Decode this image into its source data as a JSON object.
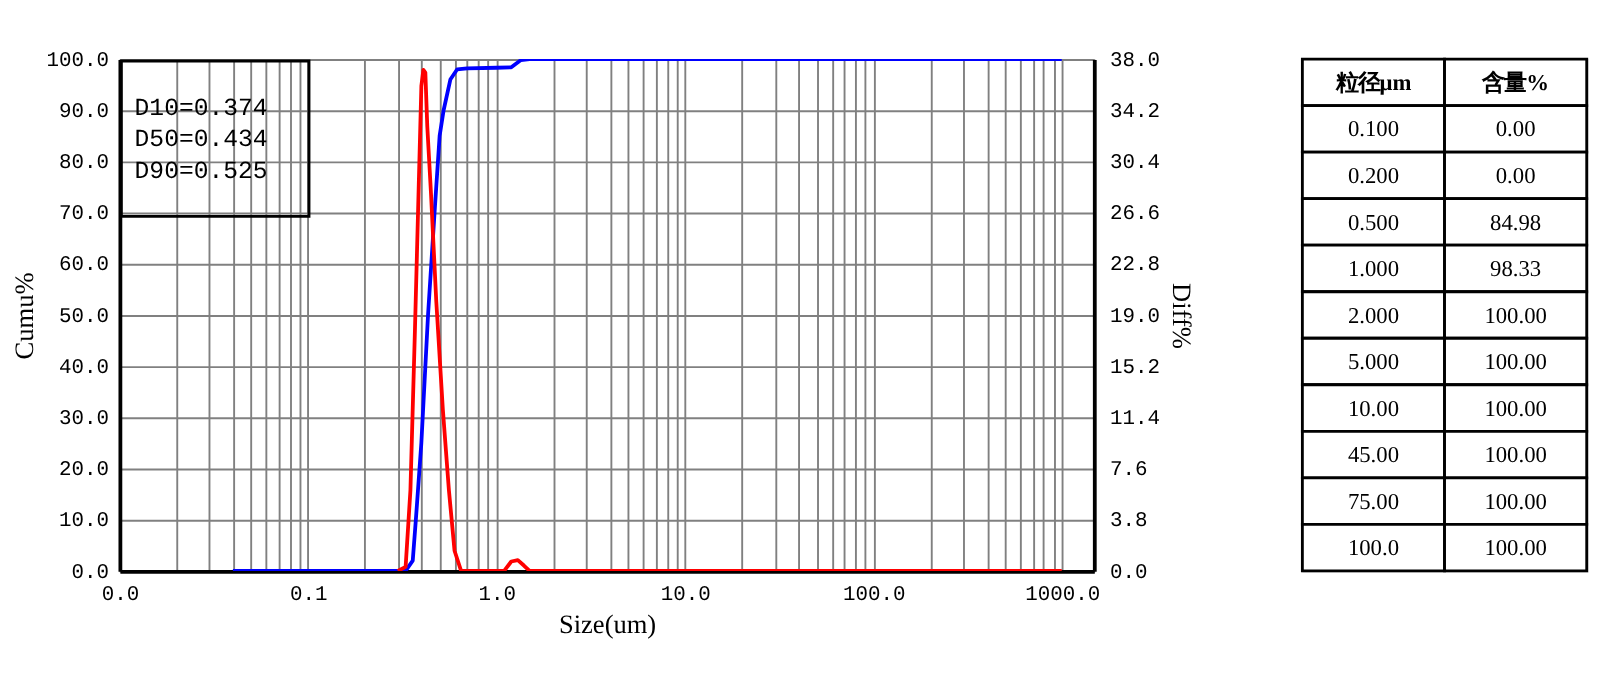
{
  "chart_data": [
    {
      "type": "line",
      "xlabel": "Size(um)",
      "ylabel": "Cumu%",
      "y2label": "Diff%",
      "log": "x",
      "grid": true,
      "marker": "none",
      "line_style": "solid",
      "xlim": [
        0.01,
        1480
      ],
      "xticks": [
        {
          "value": 0.01,
          "label": "0.0"
        },
        {
          "value": 0.02,
          "label": null
        },
        {
          "value": 0.03,
          "label": null
        },
        {
          "value": 0.04,
          "label": null
        },
        {
          "value": 0.05,
          "label": null
        },
        {
          "value": 0.06,
          "label": null
        },
        {
          "value": 0.07,
          "label": null
        },
        {
          "value": 0.08,
          "label": null
        },
        {
          "value": 0.09,
          "label": null
        },
        {
          "value": 0.1,
          "label": "0.1"
        },
        {
          "value": 0.2,
          "label": null
        },
        {
          "value": 0.3,
          "label": null
        },
        {
          "value": 0.4,
          "label": null
        },
        {
          "value": 0.5,
          "label": null
        },
        {
          "value": 0.6,
          "label": null
        },
        {
          "value": 0.7,
          "label": null
        },
        {
          "value": 0.8,
          "label": null
        },
        {
          "value": 0.9,
          "label": null
        },
        {
          "value": 1,
          "label": "1.0"
        },
        {
          "value": 2,
          "label": null
        },
        {
          "value": 3,
          "label": null
        },
        {
          "value": 4,
          "label": null
        },
        {
          "value": 5,
          "label": null
        },
        {
          "value": 6,
          "label": null
        },
        {
          "value": 7,
          "label": null
        },
        {
          "value": 8,
          "label": null
        },
        {
          "value": 9,
          "label": null
        },
        {
          "value": 10,
          "label": "10.0"
        },
        {
          "value": 20,
          "label": null
        },
        {
          "value": 30,
          "label": null
        },
        {
          "value": 40,
          "label": null
        },
        {
          "value": 50,
          "label": null
        },
        {
          "value": 60,
          "label": null
        },
        {
          "value": 70,
          "label": null
        },
        {
          "value": 80,
          "label": null
        },
        {
          "value": 90,
          "label": null
        },
        {
          "value": 100,
          "label": "100.0"
        },
        {
          "value": 200,
          "label": null
        },
        {
          "value": 300,
          "label": null
        },
        {
          "value": 400,
          "label": null
        },
        {
          "value": 500,
          "label": null
        },
        {
          "value": 600,
          "label": null
        },
        {
          "value": 700,
          "label": null
        },
        {
          "value": 800,
          "label": null
        },
        {
          "value": 900,
          "label": null
        },
        {
          "value": 1000,
          "label": "1000.0"
        }
      ],
      "ylim": [
        0,
        100
      ],
      "yticks": [
        {
          "value": 0,
          "label": "0.0"
        },
        {
          "value": 10,
          "label": "10.0"
        },
        {
          "value": 20,
          "label": "20.0"
        },
        {
          "value": 30,
          "label": "30.0"
        },
        {
          "value": 40,
          "label": "40.0"
        },
        {
          "value": 50,
          "label": "50.0"
        },
        {
          "value": 60,
          "label": "60.0"
        },
        {
          "value": 70,
          "label": "70.0"
        },
        {
          "value": 80,
          "label": "80.0"
        },
        {
          "value": 90,
          "label": "90.0"
        },
        {
          "value": 100,
          "label": "100.0"
        }
      ],
      "y2lim": [
        0,
        38
      ],
      "y2ticks": [
        {
          "value": 0,
          "label": "0.0"
        },
        3.8,
        7.6,
        11.4,
        15.2,
        {
          "value": 19,
          "label": "19.0"
        },
        22.8,
        26.6,
        30.4,
        34.2,
        {
          "value": 38,
          "label": "38.0"
        }
      ],
      "annotations": [
        "D10=0.374",
        "D50=0.434",
        "D90=0.525"
      ],
      "series": [
        {
          "color": "#0000ff",
          "x": [
            0.04,
            0.33,
            0.36,
            0.374,
            0.4,
            0.434,
            0.47,
            0.5,
            0.525,
            0.57,
            0.62,
            0.7,
            1.0,
            1.2,
            1.35,
            1.5,
            1000
          ],
          "values": [
            0,
            0,
            2,
            10,
            25,
            50,
            70,
            85,
            90,
            96,
            98,
            98.2,
            98.3,
            98.4,
            99.8,
            100,
            100
          ]
        },
        {
          "color": "#ff0000",
          "axis": "y2",
          "x": [
            0.3,
            0.33,
            0.35,
            0.37,
            0.4,
            0.41,
            0.42,
            0.43,
            0.45,
            0.48,
            0.52,
            0.56,
            0.6,
            0.65,
            1.1,
            1.2,
            1.3,
            1.4,
            1.5,
            1000
          ],
          "values": [
            0,
            0.3,
            6,
            18,
            36,
            37.2,
            37,
            33,
            28,
            20,
            12,
            6,
            1.5,
            0,
            0,
            0.7,
            0.8,
            0.4,
            0,
            0
          ]
        }
      ]
    },
    {
      "type": "other",
      "xlabel": "粒径μm",
      "ylabel": "含量%",
      "categories": [
        "0.100",
        "0.200",
        "0.500",
        "1.000",
        "2.000",
        "5.000",
        "10.00",
        "45.00",
        "75.00",
        "100.0"
      ],
      "value_labels": [
        "0.00",
        "0.00",
        "84.98",
        "98.33",
        "100.00",
        "100.00",
        "100.00",
        "100.00",
        "100.00",
        "100.00"
      ]
    }
  ]
}
